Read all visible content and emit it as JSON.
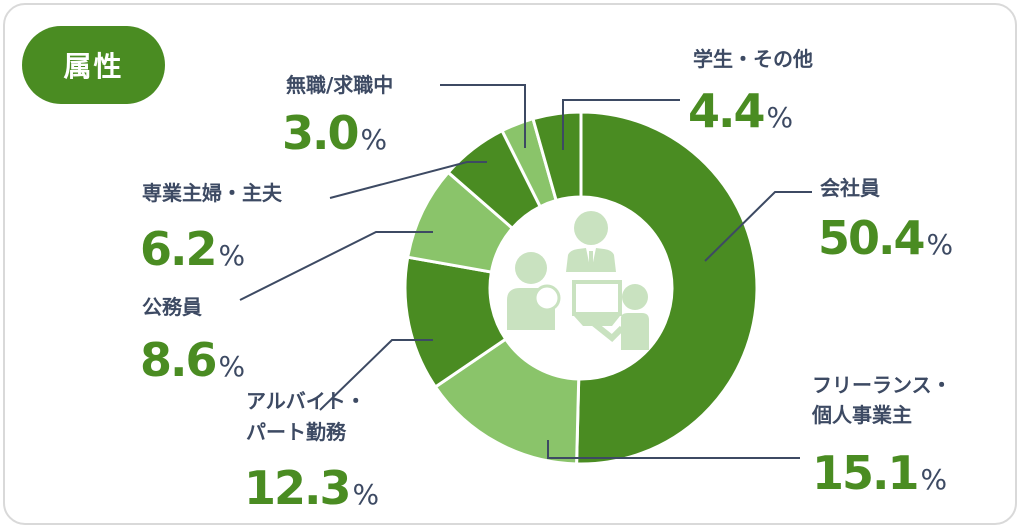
{
  "title": "属性",
  "colors": {
    "dark": "#4a8c22",
    "light": "#8ac46a",
    "icon": "#c9e2c0",
    "text": "#3d4a63"
  },
  "chart_data": {
    "type": "pie",
    "donut": true,
    "title": "属性",
    "unit": "%",
    "slices": [
      {
        "label": "会社員",
        "value": 50.4,
        "color": "#4a8c22"
      },
      {
        "label": "フリーランス・個人事業主",
        "lines": [
          "フリーランス・",
          "個人事業主"
        ],
        "value": 15.1,
        "color": "#8ac46a"
      },
      {
        "label": "アルバイト・パート勤務",
        "lines": [
          "アルバイト・",
          "パート勤務"
        ],
        "value": 12.3,
        "color": "#4a8c22"
      },
      {
        "label": "公務員",
        "value": 8.6,
        "color": "#8ac46a"
      },
      {
        "label": "専業主婦・主夫",
        "value": 6.2,
        "color": "#4a8c22"
      },
      {
        "label": "無職/求職中",
        "value": 3.0,
        "color": "#8ac46a"
      },
      {
        "label": "学生・その他",
        "value": 4.4,
        "color": "#4a8c22"
      }
    ],
    "value_text": [
      "50.4",
      "15.1",
      "12.3",
      "8.6",
      "6.2",
      "3.0",
      "4.4"
    ],
    "center_icon": "people-icon"
  }
}
